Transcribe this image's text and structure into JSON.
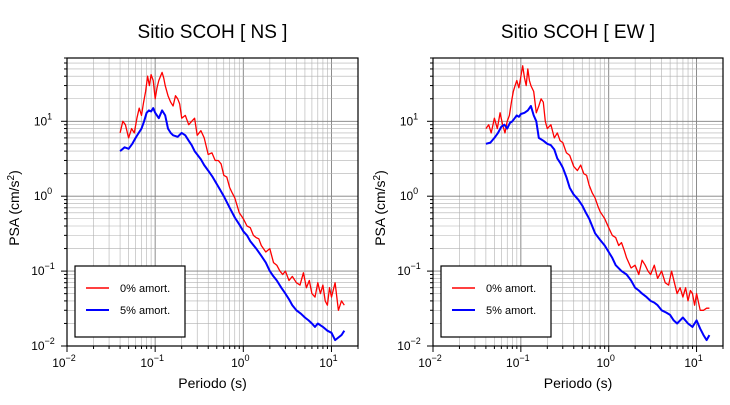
{
  "chart_data": [
    {
      "type": "line",
      "title": "Sitio SCOH [ NS ]",
      "xlabel": "Periodo (s)",
      "ylabel_main": "PSA (cm/s",
      "ylabel_sup": "2",
      "ylabel_tail": ")",
      "x_scale": "log",
      "y_scale": "log",
      "xlim": [
        0.01,
        20
      ],
      "ylim": [
        0.01,
        70
      ],
      "x_ticks": [
        {
          "value": 0.01,
          "base": "10",
          "exp": "−2"
        },
        {
          "value": 0.1,
          "base": "10",
          "exp": "−1"
        },
        {
          "value": 1,
          "base": "10",
          "exp": "0"
        },
        {
          "value": 10,
          "base": "10",
          "exp": "1"
        }
      ],
      "y_ticks": [
        {
          "value": 0.01,
          "base": "10",
          "exp": "−2"
        },
        {
          "value": 0.1,
          "base": "10",
          "exp": "−1"
        },
        {
          "value": 1,
          "base": "10",
          "exp": "0"
        },
        {
          "value": 10,
          "base": "10",
          "exp": "1"
        }
      ],
      "grid": true,
      "legend_position": "bottom-left",
      "series": [
        {
          "name": "0% amort.",
          "color": "#ff0000",
          "x": [
            0.04,
            0.043,
            0.046,
            0.05,
            0.054,
            0.058,
            0.062,
            0.066,
            0.07,
            0.074,
            0.078,
            0.082,
            0.086,
            0.09,
            0.095,
            0.1,
            0.105,
            0.11,
            0.115,
            0.12,
            0.125,
            0.13,
            0.14,
            0.15,
            0.16,
            0.17,
            0.18,
            0.19,
            0.2,
            0.22,
            0.24,
            0.26,
            0.28,
            0.3,
            0.33,
            0.36,
            0.4,
            0.44,
            0.48,
            0.52,
            0.56,
            0.6,
            0.65,
            0.7,
            0.75,
            0.8,
            0.9,
            1.0,
            1.1,
            1.2,
            1.3,
            1.4,
            1.5,
            1.6,
            1.8,
            2.0,
            2.2,
            2.4,
            2.6,
            2.8,
            3.0,
            3.3,
            3.6,
            4.0,
            4.4,
            4.8,
            5.2,
            5.6,
            6.0,
            6.5,
            7.0,
            7.5,
            8.0,
            8.5,
            9.0,
            9.5,
            10,
            11,
            12,
            13,
            14
          ],
          "y": [
            7,
            10,
            9,
            6,
            8,
            7,
            11,
            15,
            12,
            18,
            25,
            40,
            30,
            42,
            35,
            20,
            28,
            35,
            40,
            45,
            38,
            30,
            22,
            18,
            16,
            22,
            20,
            17,
            11,
            12,
            9,
            10,
            11,
            6.5,
            7.5,
            6,
            3.6,
            3.8,
            3,
            3,
            2.7,
            1.9,
            1.8,
            1.3,
            1.1,
            0.95,
            0.6,
            0.5,
            0.4,
            0.38,
            0.3,
            0.28,
            0.27,
            0.22,
            0.18,
            0.2,
            0.13,
            0.12,
            0.1,
            0.09,
            0.1,
            0.075,
            0.085,
            0.07,
            0.065,
            0.095,
            0.06,
            0.075,
            0.05,
            0.045,
            0.07,
            0.05,
            0.065,
            0.04,
            0.035,
            0.06,
            0.045,
            0.07,
            0.03,
            0.04,
            0.035
          ]
        },
        {
          "name": "5% amort.",
          "color": "#0000ff",
          "x": [
            0.04,
            0.045,
            0.05,
            0.055,
            0.06,
            0.065,
            0.07,
            0.075,
            0.08,
            0.085,
            0.09,
            0.095,
            0.1,
            0.11,
            0.12,
            0.13,
            0.14,
            0.15,
            0.16,
            0.18,
            0.2,
            0.22,
            0.24,
            0.26,
            0.28,
            0.3,
            0.33,
            0.36,
            0.4,
            0.45,
            0.5,
            0.55,
            0.6,
            0.7,
            0.8,
            0.9,
            1.0,
            1.1,
            1.2,
            1.4,
            1.6,
            1.8,
            2.0,
            2.2,
            2.4,
            2.7,
            3.0,
            3.3,
            3.6,
            4.0,
            4.5,
            5.0,
            5.5,
            6.0,
            6.5,
            7.0,
            8.0,
            9.0,
            10,
            11,
            12,
            13,
            14
          ],
          "y": [
            4,
            4.5,
            4.3,
            5,
            6,
            7,
            8,
            10,
            13,
            14,
            13.5,
            15,
            13,
            11,
            14,
            12,
            8,
            7,
            6.5,
            6.2,
            7,
            6.5,
            5.5,
            4.8,
            4,
            3.6,
            3.1,
            2.6,
            2.2,
            1.8,
            1.45,
            1.2,
            1.0,
            0.7,
            0.52,
            0.42,
            0.34,
            0.3,
            0.25,
            0.2,
            0.16,
            0.13,
            0.1,
            0.085,
            0.075,
            0.06,
            0.05,
            0.042,
            0.035,
            0.03,
            0.027,
            0.024,
            0.022,
            0.02,
            0.018,
            0.02,
            0.018,
            0.016,
            0.015,
            0.012,
            0.013,
            0.014,
            0.016
          ]
        }
      ]
    },
    {
      "type": "line",
      "title": "Sitio SCOH [ EW ]",
      "xlabel": "Periodo (s)",
      "ylabel_main": "PSA (cm/s",
      "ylabel_sup": "2",
      "ylabel_tail": ")",
      "x_scale": "log",
      "y_scale": "log",
      "xlim": [
        0.01,
        20
      ],
      "ylim": [
        0.01,
        70
      ],
      "x_ticks": [
        {
          "value": 0.01,
          "base": "10",
          "exp": "−2"
        },
        {
          "value": 0.1,
          "base": "10",
          "exp": "−1"
        },
        {
          "value": 1,
          "base": "10",
          "exp": "0"
        },
        {
          "value": 10,
          "base": "10",
          "exp": "1"
        }
      ],
      "y_ticks": [
        {
          "value": 0.01,
          "base": "10",
          "exp": "−2"
        },
        {
          "value": 0.1,
          "base": "10",
          "exp": "−1"
        },
        {
          "value": 1,
          "base": "10",
          "exp": "0"
        },
        {
          "value": 10,
          "base": "10",
          "exp": "1"
        }
      ],
      "grid": true,
      "legend_position": "bottom-left",
      "series": [
        {
          "name": "0% amort.",
          "color": "#ff0000",
          "x": [
            0.04,
            0.043,
            0.046,
            0.05,
            0.054,
            0.058,
            0.062,
            0.066,
            0.07,
            0.074,
            0.078,
            0.082,
            0.086,
            0.09,
            0.095,
            0.1,
            0.105,
            0.11,
            0.115,
            0.12,
            0.125,
            0.13,
            0.14,
            0.15,
            0.16,
            0.17,
            0.18,
            0.19,
            0.2,
            0.22,
            0.24,
            0.26,
            0.28,
            0.3,
            0.33,
            0.36,
            0.4,
            0.44,
            0.48,
            0.52,
            0.56,
            0.6,
            0.65,
            0.7,
            0.75,
            0.8,
            0.9,
            1.0,
            1.1,
            1.2,
            1.3,
            1.4,
            1.5,
            1.6,
            1.8,
            2.0,
            2.2,
            2.4,
            2.6,
            2.8,
            3.0,
            3.3,
            3.6,
            4.0,
            4.4,
            4.8,
            5.2,
            5.6,
            6.0,
            6.5,
            7.0,
            7.5,
            8.0,
            8.5,
            9.0,
            9.5,
            10,
            11,
            12,
            13,
            14
          ],
          "y": [
            8,
            9,
            7,
            11,
            8,
            13,
            9,
            7,
            10,
            12,
            18,
            25,
            30,
            35,
            28,
            40,
            55,
            38,
            30,
            50,
            35,
            30,
            25,
            13,
            16,
            20,
            18,
            10,
            8,
            9,
            6,
            7,
            5.5,
            5.2,
            3.8,
            3.5,
            2.5,
            2.2,
            2.6,
            2.0,
            1.9,
            1.4,
            1.1,
            0.95,
            0.75,
            0.62,
            0.5,
            0.38,
            0.3,
            0.28,
            0.22,
            0.24,
            0.19,
            0.15,
            0.11,
            0.12,
            0.09,
            0.14,
            0.12,
            0.1,
            0.09,
            0.12,
            0.08,
            0.1,
            0.07,
            0.065,
            0.1,
            0.07,
            0.05,
            0.06,
            0.045,
            0.06,
            0.04,
            0.055,
            0.05,
            0.035,
            0.05,
            0.03,
            0.03,
            0.032,
            0.032
          ]
        },
        {
          "name": "5% amort.",
          "color": "#0000ff",
          "x": [
            0.04,
            0.045,
            0.05,
            0.055,
            0.06,
            0.065,
            0.07,
            0.075,
            0.08,
            0.085,
            0.09,
            0.095,
            0.1,
            0.11,
            0.12,
            0.13,
            0.14,
            0.15,
            0.16,
            0.18,
            0.2,
            0.22,
            0.24,
            0.26,
            0.28,
            0.3,
            0.33,
            0.36,
            0.4,
            0.45,
            0.5,
            0.55,
            0.6,
            0.7,
            0.8,
            0.9,
            1.0,
            1.1,
            1.2,
            1.4,
            1.6,
            1.8,
            2.0,
            2.2,
            2.4,
            2.7,
            3.0,
            3.3,
            3.6,
            4.0,
            4.5,
            5.0,
            5.5,
            6.0,
            6.5,
            7.0,
            8.0,
            9.0,
            10,
            11,
            12,
            13,
            14
          ],
          "y": [
            5,
            5.2,
            6,
            7,
            8.5,
            9,
            8,
            9.5,
            10,
            11,
            12,
            11.5,
            12.5,
            13,
            14,
            16,
            12,
            10,
            6,
            5.5,
            5,
            4.8,
            4.2,
            3.2,
            2.8,
            2.4,
            1.8,
            1.3,
            1.05,
            0.9,
            0.75,
            0.6,
            0.5,
            0.32,
            0.26,
            0.22,
            0.18,
            0.15,
            0.12,
            0.1,
            0.09,
            0.075,
            0.06,
            0.055,
            0.05,
            0.045,
            0.04,
            0.038,
            0.035,
            0.03,
            0.028,
            0.026,
            0.022,
            0.02,
            0.022,
            0.024,
            0.02,
            0.018,
            0.022,
            0.017,
            0.014,
            0.012,
            0.014
          ]
        }
      ]
    }
  ]
}
